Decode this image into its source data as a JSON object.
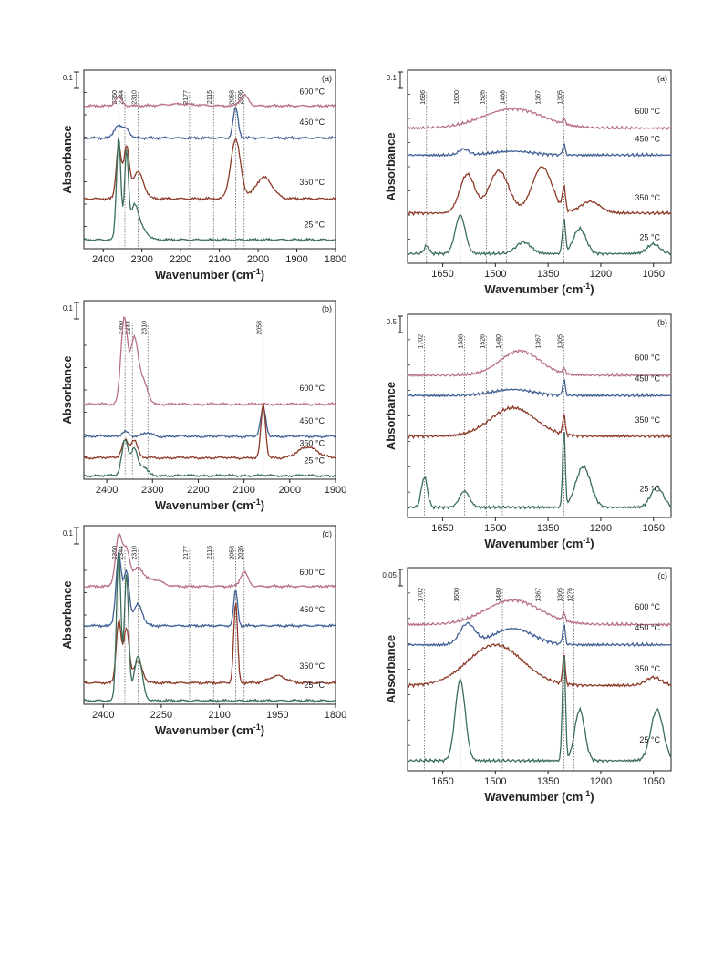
{
  "colors": {
    "600": "#b8708a",
    "450": "#3f5f94",
    "350": "#8c3a28",
    "25": "#3a6e58",
    "axis": "#222222",
    "guide": "#555555"
  },
  "chart_data": [
    {
      "type": "line",
      "panel": "(a)",
      "xlabel": "Wavenumber (cm",
      "xlabel_sup": "-1",
      "xlabel_end": ")",
      "ylabel": "Absorbance",
      "xlim": [
        2450,
        1800
      ],
      "ticks": [
        2400,
        2300,
        2200,
        2100,
        2000,
        1900,
        1800
      ],
      "scale_bar": "0.1",
      "markers": [
        2360,
        2344,
        2310,
        2177,
        2115,
        2058,
        2036
      ],
      "series": [
        {
          "name": "600 °C",
          "color": "600",
          "offset": 0.8,
          "peaks": [
            [
              2360,
              0.05,
              12
            ],
            [
              2200,
              0.01,
              60
            ],
            [
              2036,
              0.06,
              15
            ]
          ]
        },
        {
          "name": "450 °C",
          "color": "450",
          "offset": 0.62,
          "peaks": [
            [
              2362,
              0.07,
              14
            ],
            [
              2340,
              0.05,
              12
            ],
            [
              2058,
              0.17,
              9
            ]
          ]
        },
        {
          "name": "350 °C",
          "color": "350",
          "offset": 0.28,
          "peaks": [
            [
              2360,
              0.3,
              9
            ],
            [
              2340,
              0.28,
              10
            ],
            [
              2310,
              0.15,
              20
            ],
            [
              2058,
              0.33,
              18
            ],
            [
              1985,
              0.12,
              30
            ]
          ]
        },
        {
          "name": "25 °C",
          "color": "25",
          "offset": 0.05,
          "peaks": [
            [
              2360,
              0.58,
              8
            ],
            [
              2340,
              0.48,
              7
            ],
            [
              2320,
              0.18,
              14
            ],
            [
              2300,
              0.06,
              20
            ]
          ]
        }
      ]
    },
    {
      "type": "line",
      "panel": "(b)",
      "xlabel": "Wavenumber (cm",
      "xlabel_sup": "-1",
      "xlabel_end": ")",
      "ylabel": "Absorbance",
      "xlim": [
        2450,
        1900
      ],
      "ticks": [
        2400,
        2300,
        2200,
        2100,
        2000,
        1900
      ],
      "scale_bar": "0.1",
      "markers": [
        2360,
        2344,
        2310,
        2058
      ],
      "series": [
        {
          "name": "600 °C",
          "color": "600",
          "offset": 0.42,
          "peaks": [
            [
              2362,
              0.48,
              10
            ],
            [
              2340,
              0.36,
              12
            ],
            [
              2320,
              0.12,
              14
            ]
          ]
        },
        {
          "name": "450 °C",
          "color": "450",
          "offset": 0.24,
          "peaks": [
            [
              2360,
              0.03,
              10
            ],
            [
              2310,
              0.02,
              14
            ],
            [
              2058,
              0.16,
              8
            ]
          ]
        },
        {
          "name": "350 °C",
          "color": "350",
          "offset": 0.12,
          "peaks": [
            [
              2360,
              0.1,
              10
            ],
            [
              2340,
              0.1,
              10
            ],
            [
              2058,
              0.3,
              7
            ],
            [
              1960,
              0.06,
              30
            ]
          ]
        },
        {
          "name": "25 °C",
          "color": "25",
          "offset": 0.02,
          "peaks": [
            [
              2360,
              0.2,
              10
            ],
            [
              2340,
              0.15,
              10
            ],
            [
              2320,
              0.05,
              12
            ]
          ]
        }
      ]
    },
    {
      "type": "line",
      "panel": "(c)",
      "xlabel": "Wavenumber (cm",
      "xlabel_sup": "-1",
      "xlabel_end": ")",
      "ylabel": "Absorbance",
      "xlim": [
        2450,
        1800
      ],
      "ticks": [
        2400,
        2250,
        2100,
        1950,
        1800
      ],
      "scale_bar": "0.1",
      "markers": [
        2360,
        2344,
        2310,
        2177,
        2115,
        2058,
        2036
      ],
      "series": [
        {
          "name": "600 °C",
          "color": "600",
          "offset": 0.66,
          "peaks": [
            [
              2360,
              0.28,
              12
            ],
            [
              2340,
              0.2,
              12
            ],
            [
              2310,
              0.1,
              18
            ],
            [
              2270,
              0.04,
              30
            ],
            [
              2036,
              0.08,
              14
            ]
          ]
        },
        {
          "name": "450 °C",
          "color": "450",
          "offset": 0.44,
          "peaks": [
            [
              2360,
              0.4,
              10
            ],
            [
              2340,
              0.3,
              10
            ],
            [
              2310,
              0.12,
              16
            ],
            [
              2058,
              0.2,
              7
            ]
          ]
        },
        {
          "name": "350 °C",
          "color": "350",
          "offset": 0.12,
          "peaks": [
            [
              2360,
              0.35,
              9
            ],
            [
              2340,
              0.3,
              10
            ],
            [
              2310,
              0.12,
              16
            ],
            [
              2058,
              0.45,
              7
            ],
            [
              1950,
              0.04,
              30
            ]
          ]
        },
        {
          "name": "25 °C",
          "color": "25",
          "offset": 0.02,
          "peaks": [
            [
              2360,
              0.85,
              8
            ],
            [
              2340,
              0.7,
              8
            ],
            [
              2310,
              0.25,
              15
            ]
          ]
        }
      ]
    },
    {
      "type": "line",
      "panel": "(a)",
      "xlabel": "Wavenumber (cm",
      "xlabel_sup": "-1",
      "xlabel_end": ")",
      "ylabel": "Absorbance",
      "xlim": [
        1750,
        1000
      ],
      "ticks": [
        1650,
        1500,
        1350,
        1200,
        1050
      ],
      "scale_bar": "0.1",
      "markers": [
        1696,
        1600,
        1526,
        1468,
        1367,
        1305
      ],
      "series": [
        {
          "name": "600 °C",
          "color": "600",
          "offset": 0.7,
          "peaks": [
            [
              1450,
              0.1,
              120
            ],
            [
              1305,
              0.03,
              5
            ]
          ]
        },
        {
          "name": "450 °C",
          "color": "450",
          "offset": 0.56,
          "peaks": [
            [
              1590,
              0.03,
              20
            ],
            [
              1450,
              0.02,
              80
            ],
            [
              1305,
              0.06,
              5
            ]
          ]
        },
        {
          "name": "350 °C",
          "color": "350",
          "offset": 0.26,
          "peaks": [
            [
              1580,
              0.2,
              30
            ],
            [
              1490,
              0.22,
              40
            ],
            [
              1367,
              0.24,
              40
            ],
            [
              1305,
              0.12,
              6
            ],
            [
              1230,
              0.06,
              40
            ]
          ]
        },
        {
          "name": "25 °C",
          "color": "25",
          "offset": 0.05,
          "peaks": [
            [
              1696,
              0.04,
              10
            ],
            [
              1600,
              0.2,
              20
            ],
            [
              1420,
              0.06,
              30
            ],
            [
              1305,
              0.18,
              6
            ],
            [
              1260,
              0.13,
              25
            ],
            [
              1050,
              0.05,
              25
            ]
          ]
        }
      ]
    },
    {
      "type": "line",
      "panel": "(b)",
      "xlabel": "Wavenumber (cm",
      "xlabel_sup": "-1",
      "xlabel_end": ")",
      "ylabel": "Absorbance",
      "xlim": [
        1750,
        1000
      ],
      "ticks": [
        1650,
        1500,
        1350,
        1200,
        1050
      ],
      "scale_bar": "0.5",
      "markers": [
        1702,
        1588,
        1526,
        1480,
        1367,
        1305
      ],
      "series": [
        {
          "name": "600 °C",
          "color": "600",
          "offset": 0.7,
          "peaks": [
            [
              1430,
              0.12,
              80
            ],
            [
              1305,
              0.03,
              5
            ]
          ]
        },
        {
          "name": "450 °C",
          "color": "450",
          "offset": 0.6,
          "peaks": [
            [
              1450,
              0.03,
              80
            ],
            [
              1305,
              0.08,
              5
            ]
          ]
        },
        {
          "name": "350 °C",
          "color": "350",
          "offset": 0.4,
          "peaks": [
            [
              1450,
              0.14,
              90
            ],
            [
              1305,
              0.1,
              5
            ]
          ]
        },
        {
          "name": "25 °C",
          "color": "25",
          "offset": 0.05,
          "peaks": [
            [
              1702,
              0.15,
              12
            ],
            [
              1588,
              0.08,
              20
            ],
            [
              1305,
              0.4,
              5
            ],
            [
              1250,
              0.2,
              30
            ],
            [
              1040,
              0.1,
              25
            ]
          ]
        }
      ]
    },
    {
      "type": "line",
      "panel": "(c)",
      "xlabel": "Wavenumber (cm",
      "xlabel_sup": "-1",
      "xlabel_end": ")",
      "ylabel": "Absorbance",
      "xlim": [
        1750,
        1000
      ],
      "ticks": [
        1650,
        1500,
        1350,
        1200,
        1050
      ],
      "scale_bar": "0.05",
      "markers": [
        1702,
        1600,
        1480,
        1367,
        1305,
        1276
      ],
      "series": [
        {
          "name": "600 °C",
          "color": "600",
          "offset": 0.72,
          "peaks": [
            [
              1450,
              0.12,
              110
            ],
            [
              1305,
              0.04,
              5
            ]
          ]
        },
        {
          "name": "450 °C",
          "color": "450",
          "offset": 0.62,
          "peaks": [
            [
              1580,
              0.1,
              30
            ],
            [
              1450,
              0.08,
              80
            ],
            [
              1305,
              0.1,
              5
            ]
          ]
        },
        {
          "name": "350 °C",
          "color": "350",
          "offset": 0.42,
          "peaks": [
            [
              1500,
              0.2,
              110
            ],
            [
              1305,
              0.15,
              5
            ],
            [
              1050,
              0.04,
              30
            ]
          ]
        },
        {
          "name": "25 °C",
          "color": "25",
          "offset": 0.05,
          "peaks": [
            [
              1600,
              0.4,
              20
            ],
            [
              1305,
              0.55,
              6
            ],
            [
              1260,
              0.25,
              20
            ],
            [
              1040,
              0.25,
              25
            ]
          ]
        }
      ]
    }
  ]
}
